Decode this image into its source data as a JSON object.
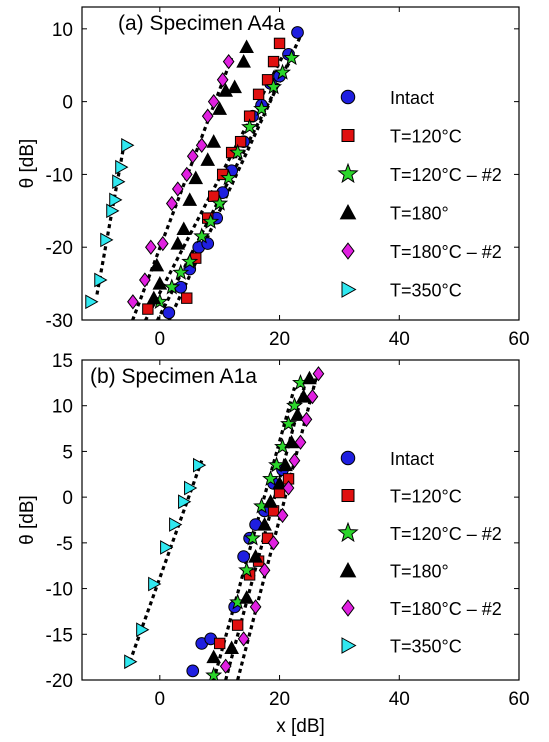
{
  "chart_data": [
    {
      "type": "scatter",
      "title": "(a) Specimen A4a",
      "xlabel": "",
      "ylabel": "θ [dB]",
      "xlim": [
        -13,
        60
      ],
      "ylim": [
        -30,
        13
      ],
      "xticks": [
        0,
        20,
        40,
        60
      ],
      "yticks": [
        -30,
        -20,
        -10,
        0,
        10
      ],
      "grid": false,
      "legend_position": "right",
      "series": [
        {
          "name": "Intact",
          "marker": "circle",
          "color": "#1f1fe0",
          "points": [
            [
              1.5,
              -29
            ],
            [
              3.5,
              -25.5
            ],
            [
              5,
              -23
            ],
            [
              6.5,
              -20
            ],
            [
              8,
              -19.5
            ],
            [
              9.5,
              -16
            ],
            [
              10.5,
              -12.5
            ],
            [
              12,
              -9.5
            ],
            [
              14,
              -5.5
            ],
            [
              15.5,
              -2
            ],
            [
              17,
              -0.5
            ],
            [
              18.5,
              2.5
            ],
            [
              20,
              3.5
            ],
            [
              21.5,
              6.5
            ],
            [
              23,
              9.5
            ]
          ]
        },
        {
          "name": "T=120°C",
          "marker": "square",
          "color": "#e01010",
          "points": [
            [
              -2,
              -28.5
            ],
            [
              4.5,
              -27
            ],
            [
              6,
              -21.5
            ],
            [
              8,
              -16
            ],
            [
              9,
              -13
            ],
            [
              10.5,
              -10
            ],
            [
              12,
              -7
            ],
            [
              13.5,
              -5.5
            ],
            [
              15,
              -2
            ],
            [
              16.5,
              1
            ],
            [
              18,
              3
            ],
            [
              19,
              5.5
            ],
            [
              20,
              8
            ]
          ]
        },
        {
          "name": "T=120°C – #2",
          "marker": "star",
          "color": "#2bd62b",
          "points": [
            [
              0,
              -27.5
            ],
            [
              2,
              -25.5
            ],
            [
              3.5,
              -23.5
            ],
            [
              5,
              -22
            ],
            [
              7,
              -18.5
            ],
            [
              8.5,
              -16.5
            ],
            [
              10,
              -14
            ],
            [
              11.5,
              -10.5
            ],
            [
              13,
              -7
            ],
            [
              15,
              -3.5
            ],
            [
              17,
              -1
            ],
            [
              19,
              2
            ],
            [
              20.5,
              4
            ],
            [
              22,
              6
            ]
          ]
        },
        {
          "name": "T=180°",
          "marker": "triangle",
          "color": "#000000",
          "points": [
            [
              -1,
              -27
            ],
            [
              0,
              -25
            ],
            [
              -0.5,
              -22.5
            ],
            [
              3,
              -19.5
            ],
            [
              4,
              -17.5
            ],
            [
              5,
              -13.5
            ],
            [
              6,
              -10.5
            ],
            [
              8,
              -8
            ],
            [
              9,
              -5.5
            ],
            [
              10,
              -1
            ],
            [
              11,
              1.5
            ],
            [
              12.5,
              2
            ],
            [
              14,
              5.5
            ],
            [
              14.5,
              7.5
            ]
          ]
        },
        {
          "name": "T=180°C – #2",
          "marker": "diamond",
          "color": "#e020e0",
          "points": [
            [
              -4.5,
              -27.5
            ],
            [
              -2.5,
              -24.5
            ],
            [
              -1.5,
              -20
            ],
            [
              0.5,
              -19.5
            ],
            [
              2,
              -14
            ],
            [
              3,
              -12
            ],
            [
              4.5,
              -10
            ],
            [
              5.5,
              -7.5
            ],
            [
              7,
              -6
            ],
            [
              8,
              -2
            ],
            [
              9,
              0
            ],
            [
              10.5,
              3
            ],
            [
              11.5,
              5.5
            ]
          ]
        },
        {
          "name": "T=350°C",
          "marker": "tri-right",
          "color": "#30e8f0",
          "points": [
            [
              -11.5,
              -27.5
            ],
            [
              -10,
              -24.5
            ],
            [
              -9,
              -19
            ],
            [
              -8,
              -15
            ],
            [
              -7.5,
              -13.5
            ],
            [
              -7,
              -11
            ],
            [
              -6.5,
              -9
            ],
            [
              -5.5,
              -6
            ]
          ]
        }
      ],
      "fit_lines": [
        {
          "x": [
            -10.5,
            -6
          ],
          "y": [
            -26.5,
            -6
          ]
        },
        {
          "x": [
            -5,
            12
          ],
          "y": [
            -31,
            6
          ]
        },
        {
          "x": [
            -3,
            21
          ],
          "y": [
            -31,
            7
          ]
        },
        {
          "x": [
            -1,
            22
          ],
          "y": [
            -31,
            6
          ]
        },
        {
          "x": [
            1,
            23.5
          ],
          "y": [
            -31,
            9
          ]
        }
      ]
    },
    {
      "type": "scatter",
      "title": "(b) Specimen A1a",
      "xlabel": "x [dB]",
      "ylabel": "θ [dB]",
      "xlim": [
        -13,
        60
      ],
      "ylim": [
        -20,
        15
      ],
      "xticks": [
        0,
        20,
        40,
        60
      ],
      "yticks": [
        -20,
        -15,
        -10,
        -5,
        0,
        5,
        10,
        15
      ],
      "grid": false,
      "legend_position": "right",
      "series": [
        {
          "name": "Intact",
          "marker": "circle",
          "color": "#1f1fe0",
          "points": [
            [
              5.5,
              -19
            ],
            [
              7,
              -16
            ],
            [
              8.5,
              -15.5
            ],
            [
              12.5,
              -12
            ],
            [
              14,
              -6.5
            ],
            [
              15,
              -4.5
            ],
            [
              16,
              -3
            ],
            [
              17.5,
              -1.5
            ],
            [
              19,
              1.5
            ],
            [
              20.5,
              3
            ]
          ]
        },
        {
          "name": "T=120°C",
          "marker": "square",
          "color": "#e01010",
          "points": [
            [
              10,
              -16
            ],
            [
              13,
              -14
            ],
            [
              15,
              -8.5
            ],
            [
              16.5,
              -7
            ],
            [
              18,
              -4.5
            ],
            [
              19,
              -1.5
            ],
            [
              20,
              0.5
            ],
            [
              21.5,
              2
            ]
          ]
        },
        {
          "name": "T=120°C – #2",
          "marker": "star",
          "color": "#2bd62b",
          "points": [
            [
              9,
              -19.5
            ],
            [
              13,
              -11.5
            ],
            [
              14.5,
              -8
            ],
            [
              15.5,
              -4.5
            ],
            [
              17,
              -1
            ],
            [
              18.5,
              2
            ],
            [
              19.5,
              3.5
            ],
            [
              20.5,
              5.5
            ],
            [
              21.5,
              8
            ],
            [
              22.5,
              10
            ],
            [
              23.5,
              12.5
            ]
          ]
        },
        {
          "name": "T=180°",
          "marker": "triangle",
          "color": "#000000",
          "points": [
            [
              9,
              -17.5
            ],
            [
              12,
              -16.5
            ],
            [
              14.5,
              -11
            ],
            [
              16,
              -6.5
            ],
            [
              17.5,
              -3
            ],
            [
              18.5,
              -0.5
            ],
            [
              20,
              1.5
            ],
            [
              21,
              3.5
            ],
            [
              22,
              6
            ],
            [
              23,
              9
            ],
            [
              24,
              11
            ],
            [
              25,
              13
            ]
          ]
        },
        {
          "name": "T=180°C – #2",
          "marker": "diamond",
          "color": "#e020e0",
          "points": [
            [
              11,
              -18.5
            ],
            [
              14,
              -15.5
            ],
            [
              16,
              -12
            ],
            [
              17.5,
              -8
            ],
            [
              19,
              -5
            ],
            [
              20.5,
              -2
            ],
            [
              21.5,
              1
            ],
            [
              22.5,
              4
            ],
            [
              23.5,
              6
            ],
            [
              24.5,
              8.5
            ],
            [
              25.5,
              11
            ],
            [
              26.5,
              13.5
            ]
          ]
        },
        {
          "name": "T=350°C",
          "marker": "tri-right",
          "color": "#30e8f0",
          "points": [
            [
              -5,
              -18
            ],
            [
              -3,
              -14.5
            ],
            [
              -1,
              -9.5
            ],
            [
              1,
              -5.5
            ],
            [
              2.5,
              -3
            ],
            [
              4,
              -0.5
            ],
            [
              5,
              1
            ],
            [
              6.5,
              3.5
            ]
          ]
        }
      ],
      "fit_lines": [
        {
          "x": [
            -5,
            7
          ],
          "y": [
            -18,
            4
          ]
        },
        {
          "x": [
            9,
            22.5
          ],
          "y": [
            -20,
            12
          ]
        },
        {
          "x": [
            11,
            24.5
          ],
          "y": [
            -20,
            13
          ]
        },
        {
          "x": [
            13,
            26.5
          ],
          "y": [
            -20,
            14
          ]
        }
      ]
    }
  ]
}
